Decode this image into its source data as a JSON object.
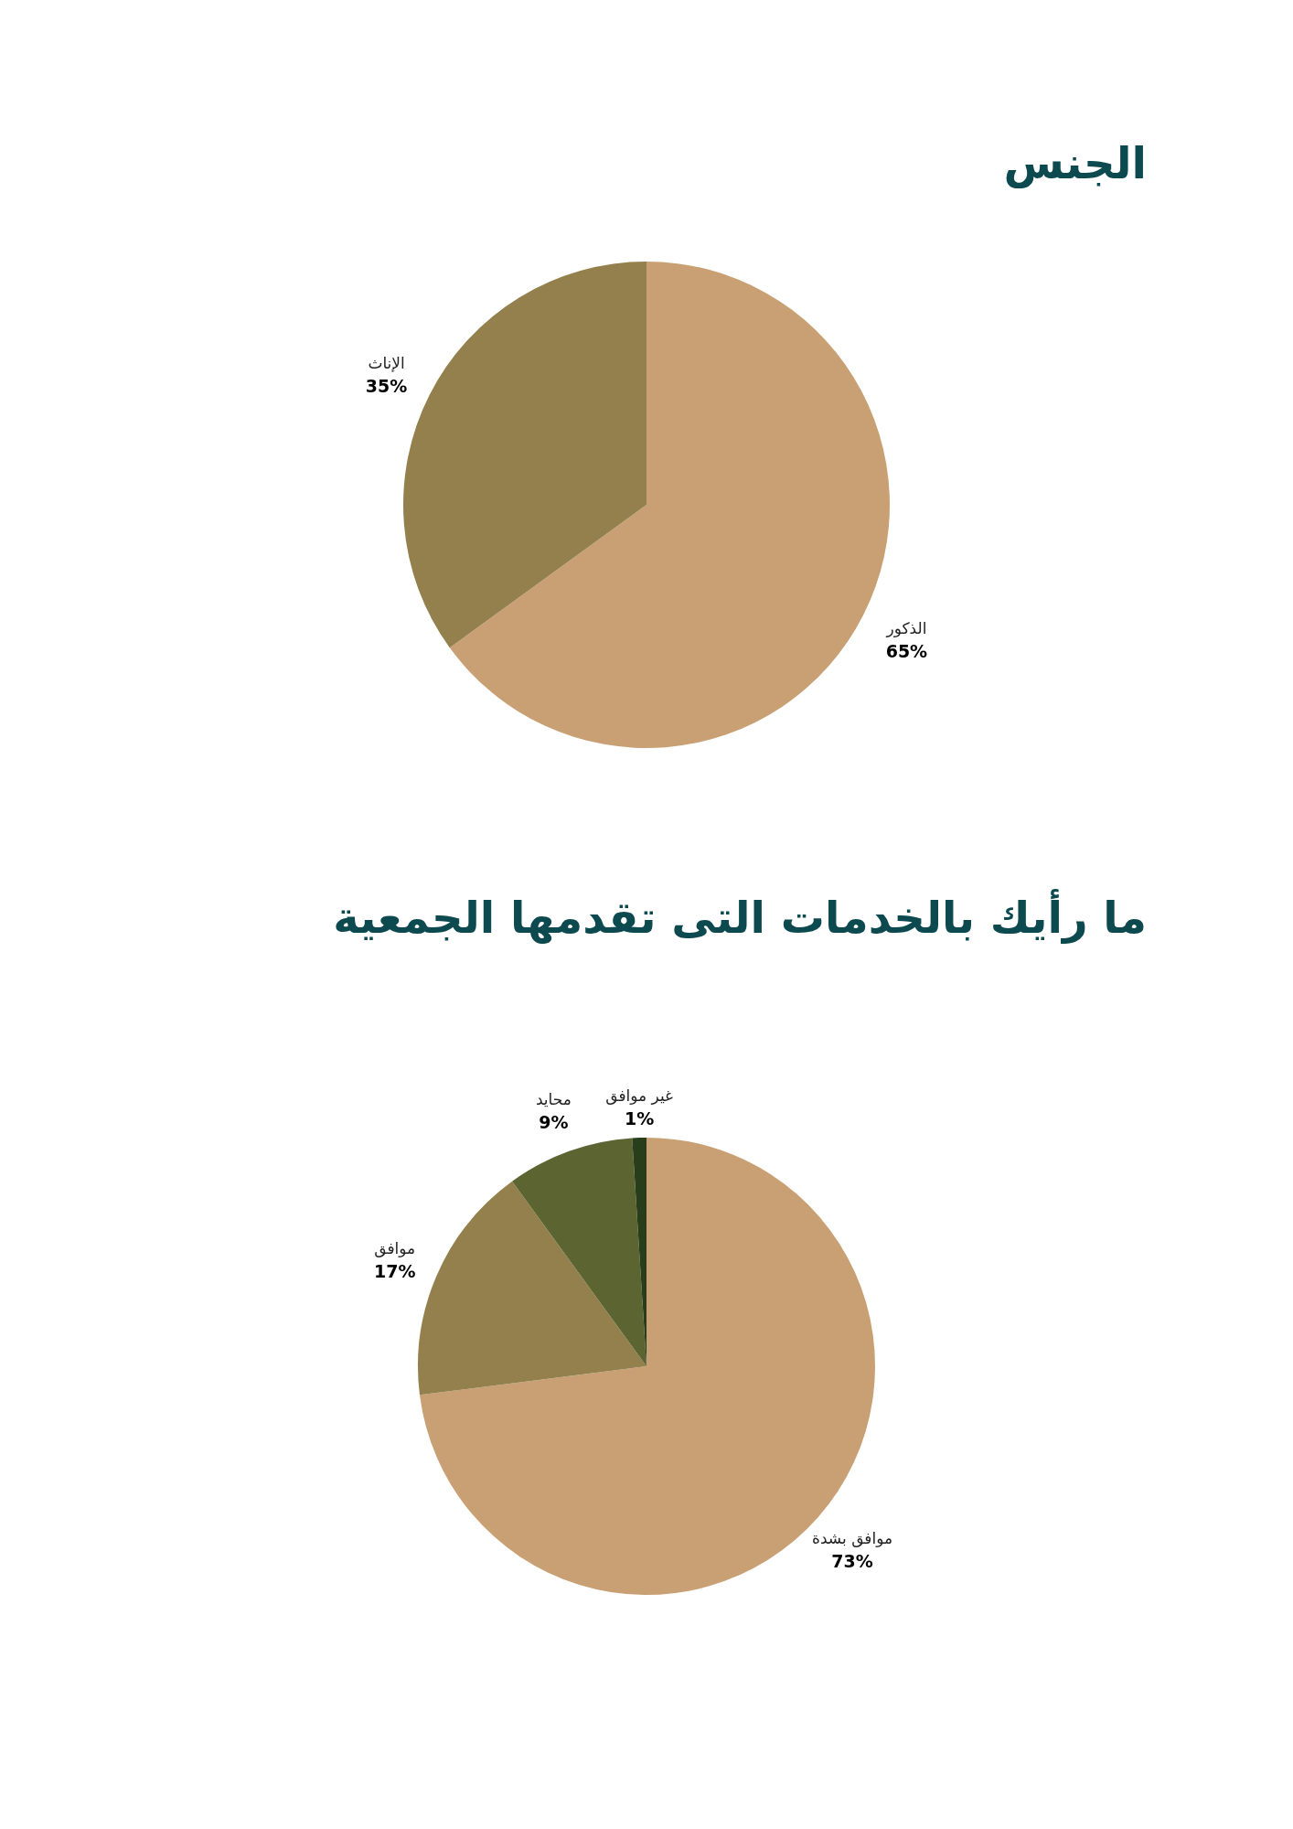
{
  "chart_data": [
    {
      "type": "pie",
      "title": "الجنس",
      "categories": [
        "الذكور",
        "الإناث"
      ],
      "values": [
        65,
        35
      ],
      "colors": [
        "#c9a074",
        "#93804c"
      ],
      "value_labels": [
        "65%",
        "35%"
      ]
    },
    {
      "type": "pie",
      "title": "ما رأيك بالخدمات التى تقدمها الجمعية",
      "categories": [
        "موافق بشدة",
        "موافق",
        "محايد",
        "غير موافق"
      ],
      "values": [
        73,
        17,
        9,
        1
      ],
      "colors": [
        "#c9a074",
        "#93804c",
        "#5c6431",
        "#283d1a"
      ],
      "value_labels": [
        "73%",
        "17%",
        "9%",
        "1%"
      ]
    }
  ]
}
